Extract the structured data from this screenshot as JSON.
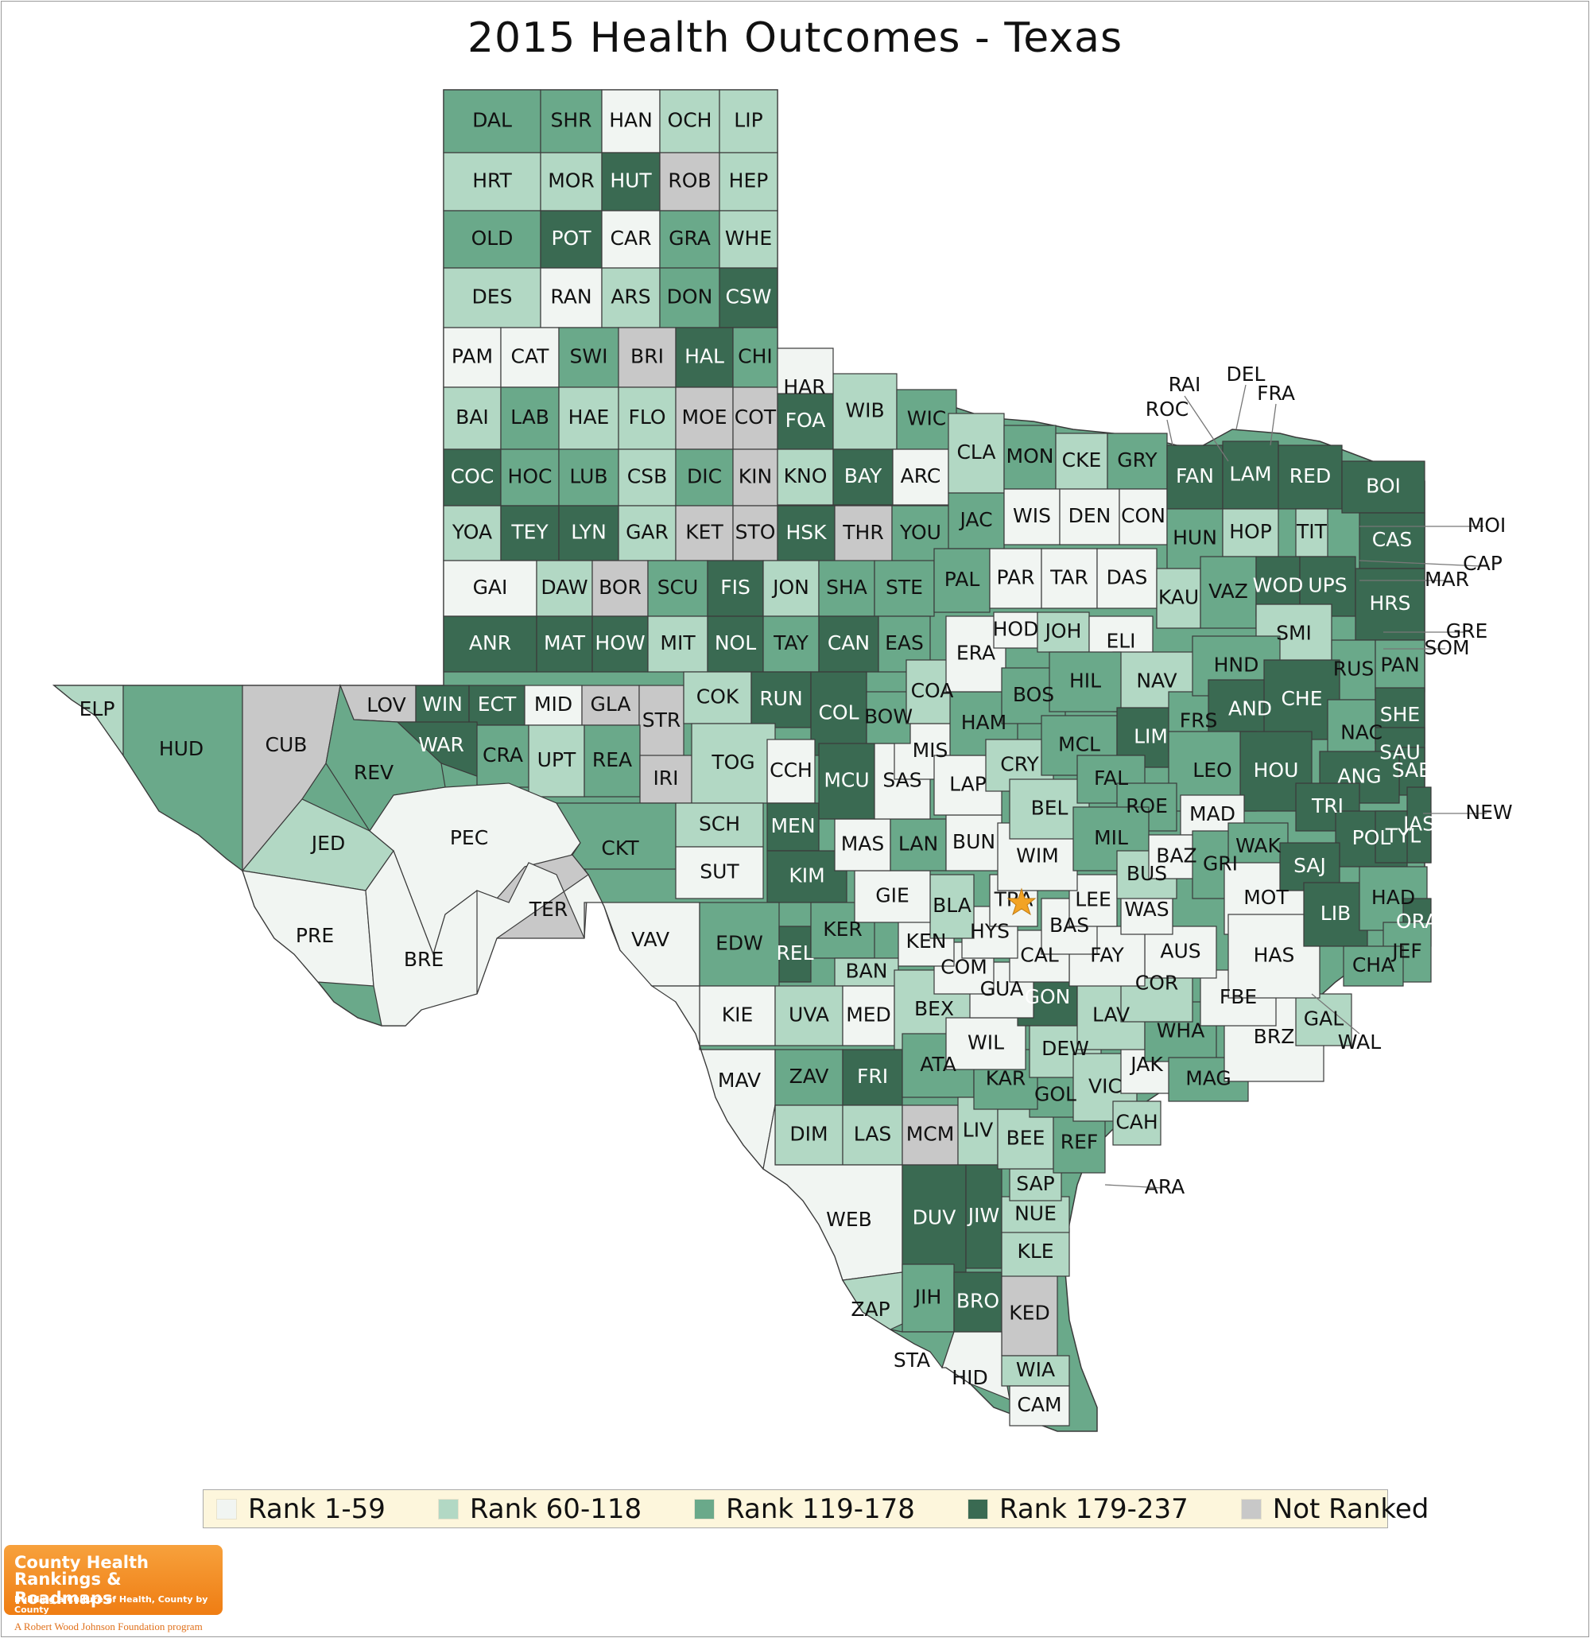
{
  "title": "2015 Health Outcomes - Texas",
  "colors": {
    "r1": "#f1f5f2",
    "r2": "#b2d8c4",
    "r3": "#6aa98a",
    "r4": "#3a6a52",
    "nr": "#c8c8c8",
    "star": "#f2a324"
  },
  "legend": [
    {
      "key": "r1",
      "label": "Rank 1-59"
    },
    {
      "key": "r2",
      "label": "Rank 60-118"
    },
    {
      "key": "r3",
      "label": "Rank 119-178"
    },
    {
      "key": "r4",
      "label": "Rank 179-237"
    },
    {
      "key": "nr",
      "label": "Not Ranked"
    }
  ],
  "logo": {
    "line1": "County Health",
    "line2": "Rankings & Roadmaps",
    "tagline": "Building a Culture of Health, County by County",
    "sub": "A Robert Wood Johnson Foundation program"
  },
  "capital_marker": "star-icon",
  "counties": [
    {
      "name": "DAL",
      "rank": "r3"
    },
    {
      "name": "SHR",
      "rank": "r3"
    },
    {
      "name": "HAN",
      "rank": "r1"
    },
    {
      "name": "OCH",
      "rank": "r2"
    },
    {
      "name": "LIP",
      "rank": "r2"
    },
    {
      "name": "HRT",
      "rank": "r2"
    },
    {
      "name": "MOR",
      "rank": "r2"
    },
    {
      "name": "HUT",
      "rank": "r4"
    },
    {
      "name": "ROB",
      "rank": "nr"
    },
    {
      "name": "HEP",
      "rank": "r2"
    },
    {
      "name": "OLD",
      "rank": "r3"
    },
    {
      "name": "POT",
      "rank": "r4"
    },
    {
      "name": "CAR",
      "rank": "r1"
    },
    {
      "name": "GRA",
      "rank": "r3"
    },
    {
      "name": "WHE",
      "rank": "r2"
    },
    {
      "name": "DES",
      "rank": "r2"
    },
    {
      "name": "RAN",
      "rank": "r1"
    },
    {
      "name": "ARS",
      "rank": "r2"
    },
    {
      "name": "DON",
      "rank": "r3"
    },
    {
      "name": "CSW",
      "rank": "r4"
    },
    {
      "name": "PAM",
      "rank": "r1"
    },
    {
      "name": "CAT",
      "rank": "r1"
    },
    {
      "name": "SWI",
      "rank": "r3"
    },
    {
      "name": "BRI",
      "rank": "nr"
    },
    {
      "name": "HAL",
      "rank": "r4"
    },
    {
      "name": "CHI",
      "rank": "r3"
    },
    {
      "name": "BAI",
      "rank": "r2"
    },
    {
      "name": "LAB",
      "rank": "r3"
    },
    {
      "name": "HAE",
      "rank": "r2"
    },
    {
      "name": "FLO",
      "rank": "r2"
    },
    {
      "name": "MOE",
      "rank": "nr"
    },
    {
      "name": "COT",
      "rank": "nr"
    },
    {
      "name": "COC",
      "rank": "r4"
    },
    {
      "name": "HOC",
      "rank": "r3"
    },
    {
      "name": "LUB",
      "rank": "r3"
    },
    {
      "name": "CSB",
      "rank": "r2"
    },
    {
      "name": "DIC",
      "rank": "r3"
    },
    {
      "name": "KIN",
      "rank": "nr"
    },
    {
      "name": "YOA",
      "rank": "r2"
    },
    {
      "name": "TEY",
      "rank": "r4"
    },
    {
      "name": "LYN",
      "rank": "r4"
    },
    {
      "name": "GAR",
      "rank": "r2"
    },
    {
      "name": "KET",
      "rank": "nr"
    },
    {
      "name": "STO",
      "rank": "nr"
    },
    {
      "name": "GAI",
      "rank": "r1"
    },
    {
      "name": "DAW",
      "rank": "r2"
    },
    {
      "name": "BOR",
      "rank": "nr"
    },
    {
      "name": "SCU",
      "rank": "r3"
    },
    {
      "name": "FIS",
      "rank": "r4"
    },
    {
      "name": "ANR",
      "rank": "r4"
    },
    {
      "name": "MAT",
      "rank": "r4"
    },
    {
      "name": "HOW",
      "rank": "r4"
    },
    {
      "name": "MIT",
      "rank": "r2"
    },
    {
      "name": "NOL",
      "rank": "r4"
    },
    {
      "name": "FOA",
      "rank": "r4"
    },
    {
      "name": "WIB",
      "rank": "r2"
    },
    {
      "name": "WIC",
      "rank": "r3"
    },
    {
      "name": "HAR",
      "rank": "r1"
    },
    {
      "name": "KNO",
      "rank": "r2"
    },
    {
      "name": "BAY",
      "rank": "r4"
    },
    {
      "name": "ARC",
      "rank": "r1"
    },
    {
      "name": "HSK",
      "rank": "r4"
    },
    {
      "name": "THR",
      "rank": "nr"
    },
    {
      "name": "YOU",
      "rank": "r3"
    },
    {
      "name": "JON",
      "rank": "r2"
    },
    {
      "name": "SHA",
      "rank": "r3"
    },
    {
      "name": "STE",
      "rank": "r3"
    },
    {
      "name": "TAY",
      "rank": "r3"
    },
    {
      "name": "CAN",
      "rank": "r4"
    },
    {
      "name": "EAS",
      "rank": "r3"
    },
    {
      "name": "CLA",
      "rank": "r2"
    },
    {
      "name": "JAC",
      "rank": "r3"
    },
    {
      "name": "PAL",
      "rank": "r3"
    },
    {
      "name": "MON",
      "rank": "r3"
    },
    {
      "name": "CKE",
      "rank": "r2"
    },
    {
      "name": "GRY",
      "rank": "r3"
    },
    {
      "name": "WIS",
      "rank": "r1"
    },
    {
      "name": "DEN",
      "rank": "r1"
    },
    {
      "name": "CON",
      "rank": "r1"
    },
    {
      "name": "PAR",
      "rank": "r1"
    },
    {
      "name": "TAR",
      "rank": "r1"
    },
    {
      "name": "DAS",
      "rank": "r1"
    },
    {
      "name": "FAN",
      "rank": "r4"
    },
    {
      "name": "LAM",
      "rank": "r4"
    },
    {
      "name": "RED",
      "rank": "r4"
    },
    {
      "name": "BOI",
      "rank": "r4"
    },
    {
      "name": "HUN",
      "rank": "r3"
    },
    {
      "name": "HOP",
      "rank": "r2"
    },
    {
      "name": "TIT",
      "rank": "r2"
    },
    {
      "name": "CAS",
      "rank": "r4"
    },
    {
      "name": "KAU",
      "rank": "r2"
    },
    {
      "name": "VAZ",
      "rank": "r3"
    },
    {
      "name": "WOD",
      "rank": "r4"
    },
    {
      "name": "UPS",
      "rank": "r4"
    },
    {
      "name": "HRS",
      "rank": "r4"
    },
    {
      "name": "SMI",
      "rank": "r2"
    },
    {
      "name": "RUS",
      "rank": "r3"
    },
    {
      "name": "PAN",
      "rank": "r3"
    },
    {
      "name": "ELP",
      "rank": "r2"
    },
    {
      "name": "HUD",
      "rank": "r3"
    },
    {
      "name": "CUB",
      "rank": "nr"
    },
    {
      "name": "LOV",
      "rank": "nr"
    },
    {
      "name": "WIN",
      "rank": "r4"
    },
    {
      "name": "ECT",
      "rank": "r4"
    },
    {
      "name": "MID",
      "rank": "r1"
    },
    {
      "name": "GLA",
      "rank": "nr"
    },
    {
      "name": "STR",
      "rank": "nr"
    },
    {
      "name": "COK",
      "rank": "r2"
    },
    {
      "name": "RUN",
      "rank": "r4"
    },
    {
      "name": "COL",
      "rank": "r4"
    },
    {
      "name": "REV",
      "rank": "r3"
    },
    {
      "name": "WAR",
      "rank": "r4"
    },
    {
      "name": "CRA",
      "rank": "r3"
    },
    {
      "name": "UPT",
      "rank": "r2"
    },
    {
      "name": "REA",
      "rank": "r3"
    },
    {
      "name": "IRI",
      "rank": "nr"
    },
    {
      "name": "TOG",
      "rank": "r2"
    },
    {
      "name": "CCH",
      "rank": "r1"
    },
    {
      "name": "JED",
      "rank": "r2"
    },
    {
      "name": "PEC",
      "rank": "r1"
    },
    {
      "name": "TER",
      "rank": "nr"
    },
    {
      "name": "CKT",
      "rank": "r3"
    },
    {
      "name": "SCH",
      "rank": "r2"
    },
    {
      "name": "SUT",
      "rank": "r1"
    },
    {
      "name": "MEN",
      "rank": "r4"
    },
    {
      "name": "KIM",
      "rank": "r4"
    },
    {
      "name": "PRE",
      "rank": "r1"
    },
    {
      "name": "BRE",
      "rank": "r1"
    },
    {
      "name": "VAV",
      "rank": "r1"
    },
    {
      "name": "EDW",
      "rank": "r3"
    },
    {
      "name": "REL",
      "rank": "r4"
    },
    {
      "name": "KER",
      "rank": "r3"
    },
    {
      "name": "BAN",
      "rank": "r2"
    },
    {
      "name": "KIE",
      "rank": "r1"
    },
    {
      "name": "UVA",
      "rank": "r2"
    },
    {
      "name": "MED",
      "rank": "r1"
    },
    {
      "name": "BEX",
      "rank": "r2"
    },
    {
      "name": "MAV",
      "rank": "r1"
    },
    {
      "name": "ZAV",
      "rank": "r3"
    },
    {
      "name": "FRI",
      "rank": "r4"
    },
    {
      "name": "ATA",
      "rank": "r3"
    },
    {
      "name": "DIM",
      "rank": "r2"
    },
    {
      "name": "LAS",
      "rank": "r2"
    },
    {
      "name": "MCM",
      "rank": "nr"
    },
    {
      "name": "LIV",
      "rank": "r2"
    },
    {
      "name": "WEB",
      "rank": "r1"
    },
    {
      "name": "DUV",
      "rank": "r4"
    },
    {
      "name": "JIW",
      "rank": "r4"
    },
    {
      "name": "ZAP",
      "rank": "r2"
    },
    {
      "name": "JIH",
      "rank": "r3"
    },
    {
      "name": "BRO",
      "rank": "r4"
    },
    {
      "name": "KED",
      "rank": "nr"
    },
    {
      "name": "STA",
      "rank": "r3"
    },
    {
      "name": "HID",
      "rank": "r1"
    },
    {
      "name": "WIA",
      "rank": "r2"
    },
    {
      "name": "CAM",
      "rank": "r1"
    },
    {
      "name": "KLE",
      "rank": "r2"
    },
    {
      "name": "NUE",
      "rank": "r2"
    },
    {
      "name": "SAP",
      "rank": "r2"
    },
    {
      "name": "BEE",
      "rank": "r2"
    },
    {
      "name": "REF",
      "rank": "r3"
    },
    {
      "name": "GOL",
      "rank": "r3"
    },
    {
      "name": "KAR",
      "rank": "r3"
    },
    {
      "name": "DEW",
      "rank": "r2"
    },
    {
      "name": "VIC",
      "rank": "r2"
    },
    {
      "name": "CAH",
      "rank": "r2"
    },
    {
      "name": "JAK",
      "rank": "r1"
    },
    {
      "name": "WIL",
      "rank": "r1"
    },
    {
      "name": "GON",
      "rank": "r4"
    },
    {
      "name": "LAV",
      "rank": "r2"
    },
    {
      "name": "WHA",
      "rank": "r3"
    },
    {
      "name": "MAG",
      "rank": "r3"
    },
    {
      "name": "BRZ",
      "rank": "r1"
    },
    {
      "name": "FBE",
      "rank": "r1"
    },
    {
      "name": "GAL",
      "rank": "r2"
    },
    {
      "name": "COR",
      "rank": "r2"
    },
    {
      "name": "AUS",
      "rank": "r1"
    },
    {
      "name": "FAY",
      "rank": "r1"
    },
    {
      "name": "GUA",
      "rank": "r1"
    },
    {
      "name": "CAL",
      "rank": "r1"
    },
    {
      "name": "COM",
      "rank": "r1"
    },
    {
      "name": "KEN",
      "rank": "r1"
    },
    {
      "name": "HYS",
      "rank": "r1"
    },
    {
      "name": "BAS",
      "rank": "r1"
    },
    {
      "name": "TRA",
      "rank": "r1"
    },
    {
      "name": "LEE",
      "rank": "r1"
    },
    {
      "name": "WAS",
      "rank": "r1"
    },
    {
      "name": "BLA",
      "rank": "r2"
    },
    {
      "name": "GIE",
      "rank": "r1"
    },
    {
      "name": "MAS",
      "rank": "r1"
    },
    {
      "name": "LAN",
      "rank": "r3"
    },
    {
      "name": "BUN",
      "rank": "r1"
    },
    {
      "name": "WIM",
      "rank": "r1"
    },
    {
      "name": "MCU",
      "rank": "r4"
    },
    {
      "name": "SAS",
      "rank": "r1"
    },
    {
      "name": "MIS",
      "rank": "r1"
    },
    {
      "name": "LAP",
      "rank": "r1"
    },
    {
      "name": "BOW",
      "rank": "r3"
    },
    {
      "name": "COA",
      "rank": "r2"
    },
    {
      "name": "HAM",
      "rank": "r3"
    },
    {
      "name": "ERA",
      "rank": "r1"
    },
    {
      "name": "HOD",
      "rank": "r1"
    },
    {
      "name": "JOH",
      "rank": "r2"
    },
    {
      "name": "ELI",
      "rank": "r1"
    },
    {
      "name": "NAV",
      "rank": "r2"
    },
    {
      "name": "BOS",
      "rank": "r3"
    },
    {
      "name": "HIL",
      "rank": "r3"
    },
    {
      "name": "CRY",
      "rank": "r2"
    },
    {
      "name": "MCL",
      "rank": "r3"
    },
    {
      "name": "LIM",
      "rank": "r4"
    },
    {
      "name": "FRS",
      "rank": "r3"
    },
    {
      "name": "HND",
      "rank": "r3"
    },
    {
      "name": "AND",
      "rank": "r4"
    },
    {
      "name": "CHE",
      "rank": "r4"
    },
    {
      "name": "BEL",
      "rank": "r2"
    },
    {
      "name": "FAL",
      "rank": "r3"
    },
    {
      "name": "LEO",
      "rank": "r3"
    },
    {
      "name": "HOU",
      "rank": "r4"
    },
    {
      "name": "ROE",
      "rank": "r3"
    },
    {
      "name": "MAD",
      "rank": "r1"
    },
    {
      "name": "MIL",
      "rank": "r3"
    },
    {
      "name": "BUS",
      "rank": "r2"
    },
    {
      "name": "BAZ",
      "rank": "r1"
    },
    {
      "name": "GRI",
      "rank": "r3"
    },
    {
      "name": "WAK",
      "rank": "r3"
    },
    {
      "name": "MOT",
      "rank": "r1"
    },
    {
      "name": "HAS",
      "rank": "r1"
    },
    {
      "name": "NAC",
      "rank": "r3"
    },
    {
      "name": "SHE",
      "rank": "r4"
    },
    {
      "name": "SAU",
      "rank": "r4"
    },
    {
      "name": "SAB",
      "rank": "r4"
    },
    {
      "name": "ANG",
      "rank": "r4"
    },
    {
      "name": "TRI",
      "rank": "r4"
    },
    {
      "name": "POL",
      "rank": "r4"
    },
    {
      "name": "TYL",
      "rank": "r4"
    },
    {
      "name": "JAS",
      "rank": "r4"
    },
    {
      "name": "SAJ",
      "rank": "r4"
    },
    {
      "name": "LIB",
      "rank": "r4"
    },
    {
      "name": "HAD",
      "rank": "r3"
    },
    {
      "name": "ORA",
      "rank": "r4"
    },
    {
      "name": "JEF",
      "rank": "r3"
    },
    {
      "name": "CHA",
      "rank": "r3"
    },
    {
      "name": "ARA",
      "rank": "r4"
    },
    {
      "name": "RAI",
      "rank": "r3"
    },
    {
      "name": "ROC",
      "rank": "r1"
    },
    {
      "name": "DEL",
      "rank": "r3"
    },
    {
      "name": "FRA",
      "rank": "r3"
    },
    {
      "name": "MOI",
      "rank": "r3"
    },
    {
      "name": "CAP",
      "rank": "r4"
    },
    {
      "name": "MAR",
      "rank": "r4"
    },
    {
      "name": "GRE",
      "rank": "r3"
    },
    {
      "name": "SOM",
      "rank": "r2"
    },
    {
      "name": "NEW",
      "rank": "r4"
    },
    {
      "name": "WAL",
      "rank": "r3"
    }
  ]
}
